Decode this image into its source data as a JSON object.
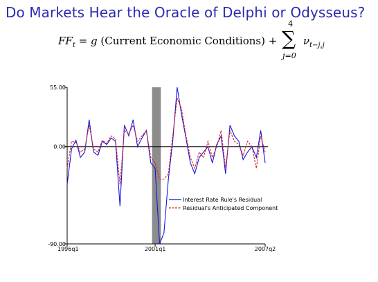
{
  "slide": {
    "title": "Do Markets Hear the Oracle of Delphi or Odysseus?"
  },
  "equation": {
    "lhs": "FF",
    "lhs_sub": "t",
    "equals": "=",
    "func": "g",
    "argument": "(Current Economic Conditions)",
    "plus": "+",
    "sum_upper": "4",
    "sum_lower": "j=0",
    "term": "ν",
    "term_sub": "t−j,j"
  },
  "colors": {
    "residual": "#1515e0",
    "anticipated": "#e02020",
    "shade": "#8c8c8c",
    "title": "#2b2bb0"
  },
  "chart_data": {
    "type": "line",
    "ylim": [
      -90,
      55
    ],
    "y_ticks": [
      {
        "value": 55,
        "label": "55.00"
      },
      {
        "value": 0,
        "label": "0.00"
      },
      {
        "value": -90,
        "label": "-90.00"
      }
    ],
    "x_ticks": [
      {
        "index": 0,
        "label": "1996q1"
      },
      {
        "index": 20,
        "label": "2001q1"
      },
      {
        "index": 45,
        "label": "2007q2"
      }
    ],
    "shaded_region": {
      "start_index": 19.3,
      "end_index": 21.3
    },
    "zero_line": true,
    "legend_placement": "lower-right",
    "series": [
      {
        "name": "Interest Rate Rule's Residual",
        "color_key": "residual",
        "values": [
          -35,
          -2,
          6,
          -10,
          -5,
          25,
          -5,
          -8,
          5,
          2,
          8,
          5,
          -55,
          20,
          10,
          25,
          0,
          8,
          15,
          -15,
          -20,
          -90,
          -80,
          -30,
          5,
          55,
          30,
          8,
          -15,
          -25,
          -10,
          -5,
          0,
          -15,
          2,
          10,
          -25,
          20,
          10,
          5,
          -12,
          -5,
          0,
          -10,
          15,
          -15
        ]
      },
      {
        "name": "Residual's Anticipated Component",
        "color_key": "anticipated",
        "values": [
          -20,
          5,
          4,
          -5,
          -2,
          20,
          -2,
          -5,
          6,
          3,
          10,
          7,
          -35,
          15,
          12,
          20,
          5,
          10,
          15,
          -10,
          -15,
          -30,
          -30,
          -25,
          10,
          45,
          35,
          10,
          -10,
          -20,
          -5,
          -10,
          5,
          -10,
          0,
          15,
          -20,
          15,
          5,
          2,
          -8,
          5,
          0,
          -20,
          10,
          -5
        ]
      }
    ]
  }
}
